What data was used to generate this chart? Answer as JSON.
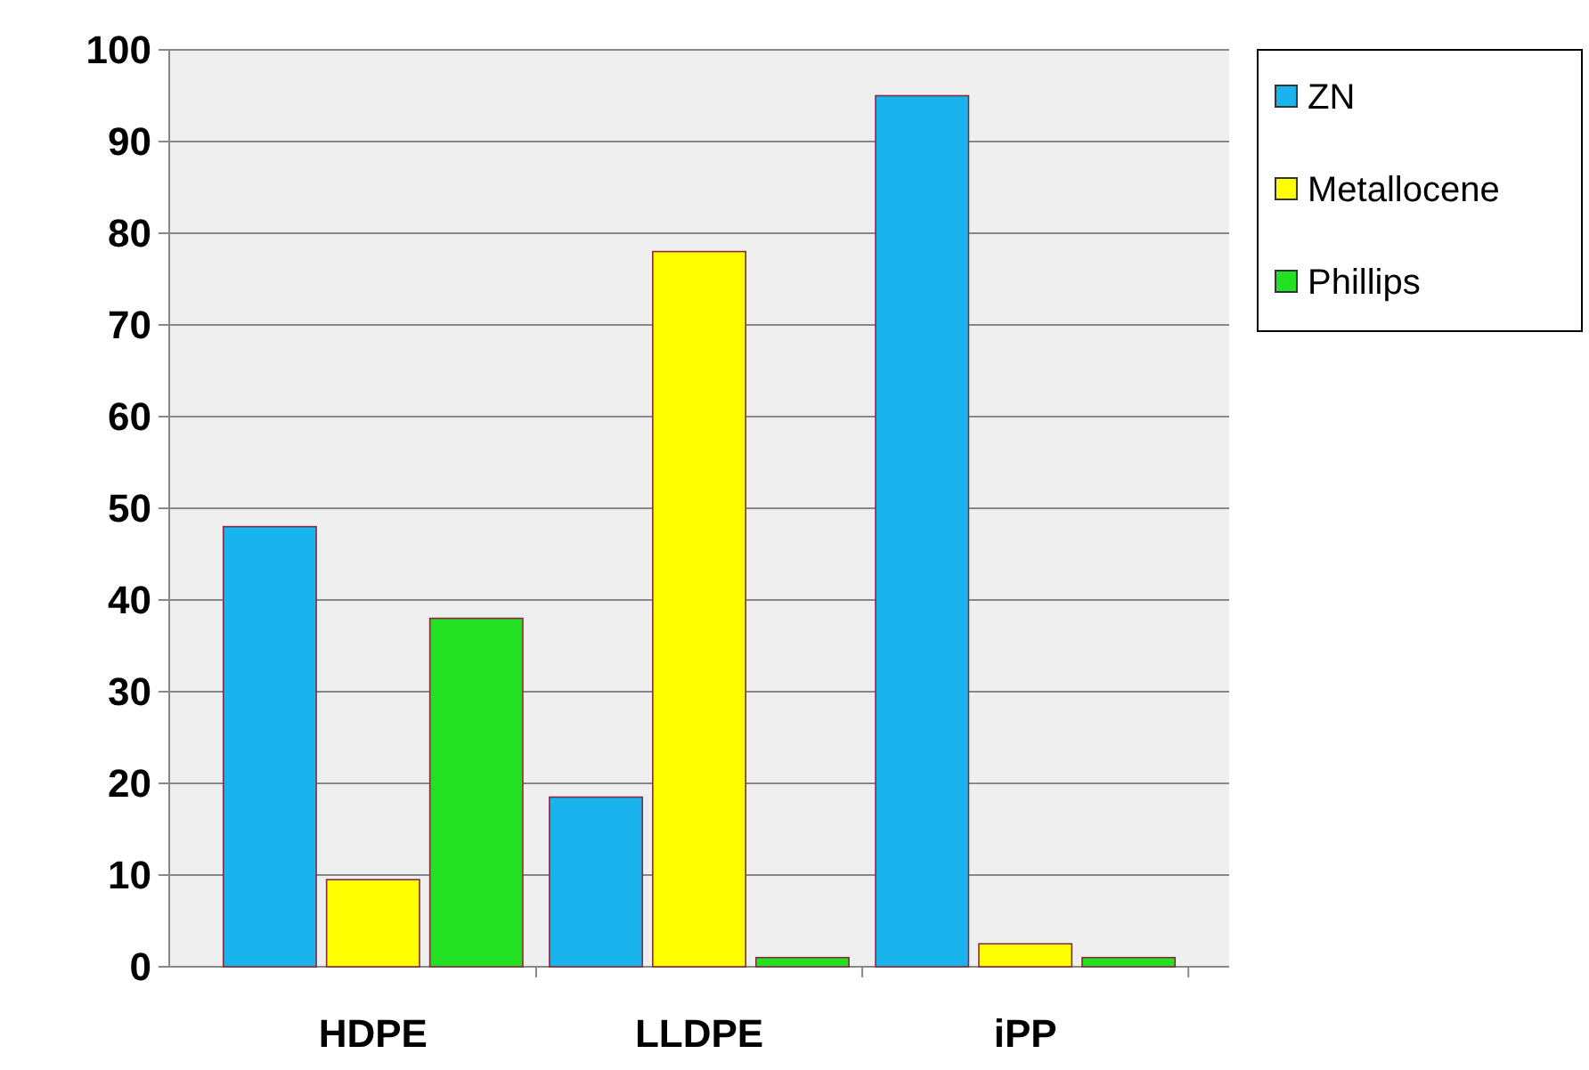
{
  "chart_data": {
    "type": "bar",
    "categories": [
      "HDPE",
      "LLDPE",
      "iPP"
    ],
    "series": [
      {
        "name": "ZN",
        "color": "#19b4ee",
        "values": [
          48,
          18.5,
          95
        ]
      },
      {
        "name": "Metallocene",
        "color": "#ffff00",
        "values": [
          9.5,
          78,
          2.5
        ]
      },
      {
        "name": "Phillips",
        "color": "#22e022",
        "values": [
          38,
          1,
          1
        ]
      }
    ],
    "ylim": [
      0,
      100
    ],
    "yticks": [
      0,
      10,
      20,
      30,
      40,
      50,
      60,
      70,
      80,
      90,
      100
    ],
    "grid": "y",
    "legend": "top right"
  }
}
